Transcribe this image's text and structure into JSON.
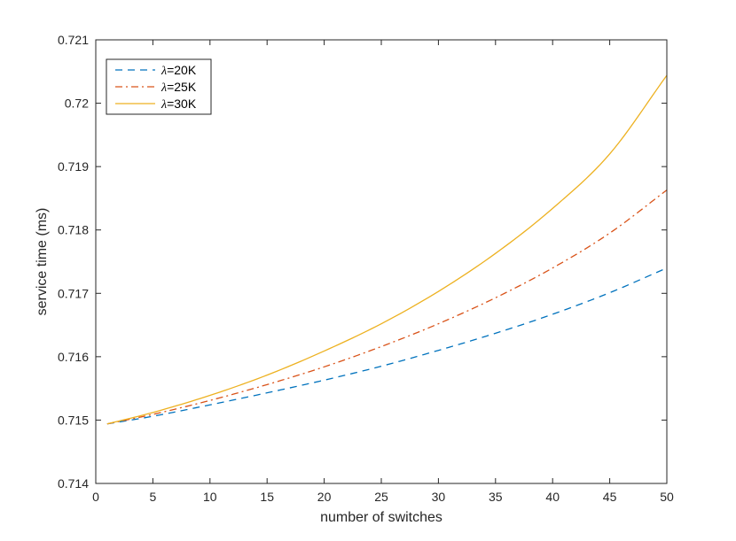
{
  "chart_data": {
    "type": "line",
    "xlabel": "number of switches",
    "ylabel": "service time (ms)",
    "xlim": [
      0,
      50
    ],
    "ylim": [
      0.714,
      0.721
    ],
    "xticks": [
      0,
      5,
      10,
      15,
      20,
      25,
      30,
      35,
      40,
      45,
      50
    ],
    "xtick_labels": [
      "0",
      "5",
      "10",
      "15",
      "20",
      "25",
      "30",
      "35",
      "40",
      "45",
      "50"
    ],
    "yticks": [
      0.714,
      0.715,
      0.716,
      0.717,
      0.718,
      0.719,
      0.72,
      0.721
    ],
    "ytick_labels": [
      "0.714",
      "0.715",
      "0.716",
      "0.717",
      "0.718",
      "0.719",
      "0.72",
      "0.721"
    ],
    "grid": false,
    "legend_position": "top-left",
    "x": [
      1,
      5,
      10,
      15,
      20,
      25,
      30,
      35,
      40,
      45,
      50
    ],
    "series": [
      {
        "name_symbol": "λ",
        "name_rest": "=20K",
        "color": "#0072BD",
        "dash": "dashed",
        "values": [
          0.71494,
          0.71506,
          0.71524,
          0.71543,
          0.71563,
          0.71585,
          0.7161,
          0.71637,
          0.71667,
          0.71701,
          0.7174
        ]
      },
      {
        "name_symbol": "λ",
        "name_rest": "=25K",
        "color": "#D95319",
        "dash": "dashdot",
        "values": [
          0.71494,
          0.71509,
          0.71531,
          0.71556,
          0.71584,
          0.71616,
          0.71652,
          0.71693,
          0.7174,
          0.71795,
          0.71863
        ]
      },
      {
        "name_symbol": "λ",
        "name_rest": "=30K",
        "color": "#EDB120",
        "dash": "solid",
        "values": [
          0.71494,
          0.71512,
          0.71539,
          0.71571,
          0.71609,
          0.71652,
          0.71703,
          0.71763,
          0.71834,
          0.7192,
          0.72044
        ]
      }
    ]
  }
}
